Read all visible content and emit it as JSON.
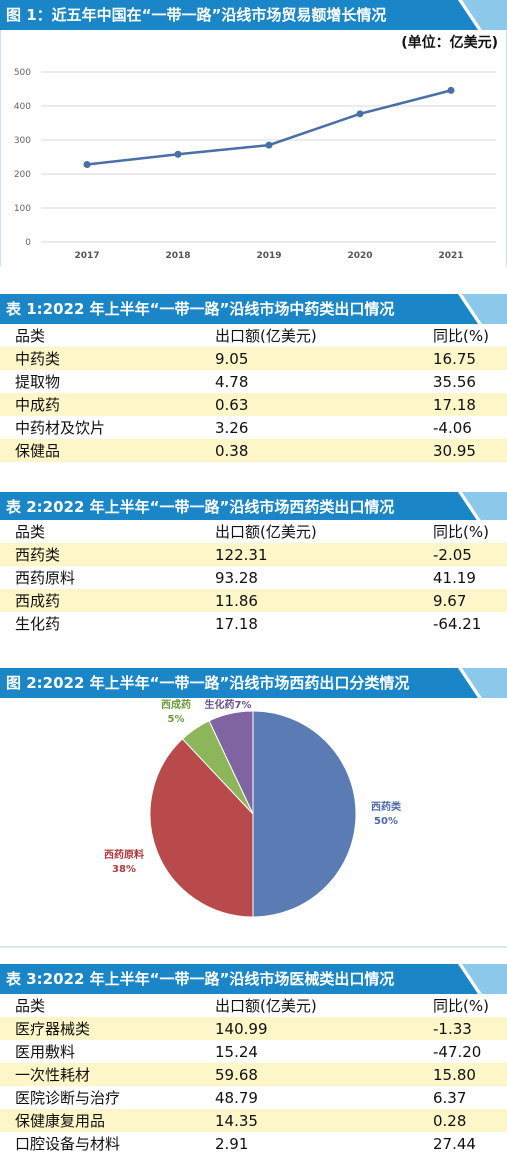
{
  "colors": {
    "header": "#1a86c8",
    "row_highlight": "#fdf6c8",
    "line": "#4a6fa8"
  },
  "figure1": {
    "title": "图 1：近五年中国在“一带一路”沿线市场贸易额增长情况",
    "unit": "(单位：亿美元)",
    "chart_data": {
      "type": "line",
      "x": [
        "2017",
        "2018",
        "2019",
        "2020",
        "2021"
      ],
      "series": [
        {
          "values": [
            228,
            258,
            285,
            377,
            446
          ]
        }
      ],
      "ylim": [
        0,
        500
      ],
      "yticks": [
        "0",
        "100",
        "200",
        "300",
        "400",
        "500"
      ],
      "grid": true
    }
  },
  "table1": {
    "title": "表 1:2022 年上半年“一带一路”沿线市场中药类出口情况",
    "headers": [
      "品类",
      "出口额(亿美元)",
      "同比(%)"
    ],
    "rows": [
      [
        "中药类",
        "9.05",
        "16.75"
      ],
      [
        "提取物",
        "4.78",
        "35.56"
      ],
      [
        "中成药",
        "0.63",
        "17.18"
      ],
      [
        "中药材及饮片",
        "3.26",
        "-4.06"
      ],
      [
        "保健品",
        "0.38",
        "30.95"
      ]
    ]
  },
  "table2": {
    "title": "表 2:2022 年上半年“一带一路”沿线市场西药类出口情况",
    "headers": [
      "品类",
      "出口额(亿美元)",
      "同比(%)"
    ],
    "rows": [
      [
        "西药类",
        "122.31",
        "-2.05"
      ],
      [
        "西药原料",
        "93.28",
        "41.19"
      ],
      [
        "西成药",
        "11.86",
        "9.67"
      ],
      [
        "生化药",
        "17.18",
        "-64.21"
      ]
    ]
  },
  "figure2": {
    "title": "图 2:2022 年上半年“一带一路”沿线市场西药出口分类情况",
    "chart_data": {
      "type": "pie",
      "slices": [
        {
          "name": "西药类",
          "value": 50,
          "label": "50%",
          "color": "#5b7bb4"
        },
        {
          "name": "西药原料",
          "value": 38,
          "label": "38%",
          "color": "#b84a4c"
        },
        {
          "name": "西成药",
          "value": 5,
          "label": "5%",
          "color": "#8db55a"
        },
        {
          "name": "生化药",
          "value": 7,
          "label": "7%",
          "color": "#8064a2"
        }
      ]
    }
  },
  "table3": {
    "title": "表 3:2022 年上半年“一带一路”沿线市场医械类出口情况",
    "headers": [
      "品类",
      "出口额(亿美元)",
      "同比(%)"
    ],
    "rows": [
      [
        "医疗器械类",
        "140.99",
        "-1.33"
      ],
      [
        "医用敷料",
        "15.24",
        "-47.20"
      ],
      [
        "一次性耗材",
        "59.68",
        "15.80"
      ],
      [
        "医院诊断与治疗",
        "48.79",
        "6.37"
      ],
      [
        "保健康复用品",
        "14.35",
        "0.28"
      ],
      [
        "口腔设备与材料",
        "2.91",
        "27.44"
      ]
    ]
  }
}
